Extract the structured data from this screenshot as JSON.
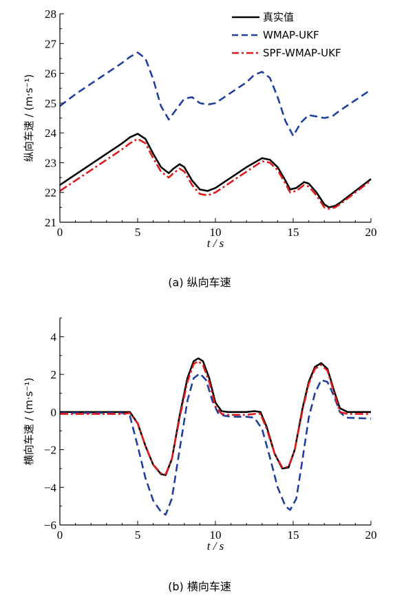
{
  "chart_data": [
    {
      "type": "line",
      "caption": "(a) 纵向车速",
      "xlabel": "t / s",
      "ylabel": "纵向车速 / (m·s⁻¹)",
      "xlim": [
        0,
        20
      ],
      "ylim": [
        21,
        28
      ],
      "xticks": [
        "0",
        "5",
        "10",
        "15",
        "20"
      ],
      "yticks": [
        "21",
        "22",
        "23",
        "24",
        "25",
        "26",
        "27",
        "28"
      ],
      "legend_position": "top-right",
      "series": [
        {
          "name": "真实值",
          "color": "#000000",
          "style": "solid",
          "x": [
            0,
            1,
            2,
            3,
            4,
            4.5,
            5,
            5.5,
            6,
            6.5,
            7,
            7.3,
            7.7,
            8,
            8.5,
            9,
            9.5,
            10,
            11,
            12,
            13,
            13.5,
            14,
            14.5,
            14.8,
            15.2,
            15.7,
            16,
            16.5,
            17,
            17.3,
            17.7,
            18,
            19,
            20
          ],
          "y": [
            22.25,
            22.6,
            22.95,
            23.3,
            23.65,
            23.85,
            23.97,
            23.8,
            23.3,
            22.85,
            22.65,
            22.8,
            22.95,
            22.85,
            22.4,
            22.1,
            22.05,
            22.15,
            22.5,
            22.85,
            23.15,
            23.1,
            22.85,
            22.4,
            22.1,
            22.15,
            22.35,
            22.3,
            22.0,
            21.6,
            21.5,
            21.55,
            21.65,
            22.05,
            22.45
          ]
        },
        {
          "name": "WMAP-UKF",
          "color": "#1f3fa0",
          "style": "dashed",
          "x": [
            0,
            1,
            2,
            3,
            4,
            4.5,
            5,
            5.5,
            6,
            6.5,
            7,
            7.5,
            8,
            8.5,
            9,
            9.5,
            10,
            11,
            12,
            12.5,
            13,
            13.5,
            14,
            14.5,
            15,
            15.5,
            16,
            16.5,
            17,
            17.5,
            18,
            19,
            20
          ],
          "y": [
            24.9,
            25.3,
            25.65,
            26.0,
            26.35,
            26.55,
            26.7,
            26.5,
            25.8,
            24.9,
            24.45,
            24.8,
            25.15,
            25.2,
            25.0,
            24.95,
            25.0,
            25.35,
            25.7,
            25.95,
            26.05,
            25.85,
            25.2,
            24.4,
            23.9,
            24.35,
            24.6,
            24.55,
            24.5,
            24.55,
            24.75,
            25.1,
            25.45
          ]
        },
        {
          "name": "SPF-WMAP-UKF",
          "color": "#e0191b",
          "style": "dashdot",
          "x": [
            0,
            1,
            2,
            3,
            4,
            4.5,
            5,
            5.5,
            6,
            6.5,
            7,
            7.3,
            7.7,
            8,
            8.5,
            9,
            9.5,
            10,
            11,
            12,
            13,
            13.5,
            14,
            14.5,
            14.8,
            15.2,
            15.7,
            16,
            16.5,
            17,
            17.3,
            17.7,
            18,
            19,
            20
          ],
          "y": [
            22.05,
            22.4,
            22.75,
            23.1,
            23.45,
            23.65,
            23.8,
            23.65,
            23.15,
            22.7,
            22.5,
            22.65,
            22.8,
            22.7,
            22.25,
            21.95,
            21.9,
            22.0,
            22.35,
            22.7,
            23.05,
            23.0,
            22.75,
            22.3,
            22.0,
            22.05,
            22.25,
            22.2,
            21.9,
            21.5,
            21.45,
            21.5,
            21.6,
            22.0,
            22.4
          ]
        }
      ]
    },
    {
      "type": "line",
      "caption": "(b) 横向车速",
      "xlabel": "t / s",
      "ylabel": "横向车速 / (m·s⁻¹)",
      "xlim": [
        0,
        20
      ],
      "ylim": [
        -6,
        5
      ],
      "xticks": [
        "0",
        "5",
        "10",
        "15",
        "20"
      ],
      "yticks": [
        "−6",
        "−4",
        "−2",
        "0",
        "2",
        "4"
      ],
      "series": [
        {
          "name": "真实值",
          "color": "#000000",
          "style": "solid",
          "x": [
            0,
            4,
            4.5,
            5,
            5.5,
            6,
            6.5,
            6.8,
            7.2,
            7.7,
            8.2,
            8.6,
            8.9,
            9.2,
            9.6,
            10,
            10.4,
            10.8,
            12,
            12.5,
            12.9,
            13.3,
            13.8,
            14.3,
            14.7,
            15.1,
            15.6,
            16,
            16.4,
            16.8,
            17.2,
            17.6,
            18,
            18.5,
            20
          ],
          "y": [
            0,
            0,
            0.0,
            -0.6,
            -1.8,
            -2.8,
            -3.3,
            -3.35,
            -2.5,
            -0.2,
            1.8,
            2.7,
            2.85,
            2.7,
            1.8,
            0.5,
            0.05,
            0,
            0,
            0.05,
            0.0,
            -0.8,
            -2.2,
            -3.0,
            -2.95,
            -2.0,
            0.2,
            1.6,
            2.4,
            2.6,
            2.3,
            1.2,
            0.2,
            0,
            0
          ]
        },
        {
          "name": "WMAP-UKF",
          "color": "#1f3fa0",
          "style": "dashed",
          "x": [
            0,
            4,
            4.5,
            5,
            5.5,
            6,
            6.5,
            6.8,
            7.2,
            7.7,
            8.2,
            8.6,
            9,
            9.4,
            9.8,
            10.2,
            10.6,
            11,
            12,
            12.5,
            13,
            13.5,
            14,
            14.5,
            14.8,
            15.2,
            15.6,
            16,
            16.4,
            16.8,
            17.2,
            17.6,
            18,
            18.4,
            20
          ],
          "y": [
            -0.05,
            -0.05,
            -0.2,
            -1.8,
            -3.5,
            -4.7,
            -5.3,
            -5.45,
            -4.6,
            -2.0,
            0.6,
            1.8,
            2.05,
            1.7,
            0.6,
            -0.1,
            -0.2,
            -0.25,
            -0.25,
            -0.3,
            -0.9,
            -2.4,
            -4.0,
            -5.0,
            -5.2,
            -4.6,
            -2.5,
            -0.3,
            1.0,
            1.7,
            1.6,
            0.9,
            0.0,
            -0.3,
            -0.35
          ]
        },
        {
          "name": "SPF-WMAP-UKF",
          "color": "#e0191b",
          "style": "dashdot",
          "x": [
            0,
            4,
            4.5,
            5,
            5.5,
            6,
            6.5,
            6.8,
            7.2,
            7.7,
            8.2,
            8.6,
            8.9,
            9.2,
            9.6,
            10,
            10.4,
            10.8,
            12,
            12.5,
            12.9,
            13.3,
            13.8,
            14.3,
            14.7,
            15.1,
            15.6,
            16,
            16.4,
            16.8,
            17.2,
            17.6,
            18,
            18.5,
            20
          ],
          "y": [
            -0.1,
            -0.1,
            -0.05,
            -0.6,
            -1.8,
            -2.8,
            -3.25,
            -3.3,
            -2.5,
            -0.3,
            1.6,
            2.55,
            2.7,
            2.5,
            1.6,
            0.3,
            -0.1,
            -0.15,
            -0.15,
            -0.1,
            -0.1,
            -0.9,
            -2.2,
            -2.95,
            -2.9,
            -2.0,
            0.1,
            1.5,
            2.3,
            2.5,
            2.2,
            1.1,
            0.0,
            -0.1,
            -0.1
          ]
        }
      ]
    }
  ]
}
